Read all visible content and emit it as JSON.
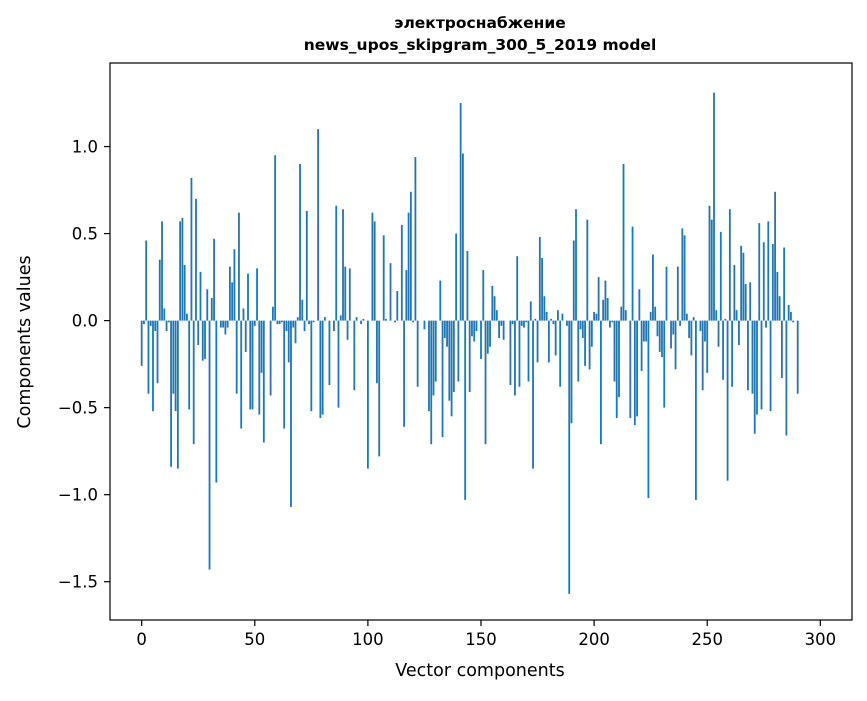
{
  "chart_data": {
    "type": "bar",
    "title": "электроснабжение",
    "subtitle": "news_upos_skipgram_300_5_2019 model",
    "xlabel": "Vector components",
    "ylabel": "Components values",
    "xlim": [
      -14,
      314
    ],
    "ylim": [
      -1.72,
      1.48
    ],
    "xticks": [
      0,
      50,
      100,
      150,
      200,
      250,
      300
    ],
    "xtick_labels": [
      "0",
      "50",
      "100",
      "150",
      "200",
      "250",
      "300"
    ],
    "yticks": [
      -1.5,
      -1.0,
      -0.5,
      0.0,
      0.5,
      1.0
    ],
    "ytick_labels": [
      "−1.5",
      "−1.0",
      "−0.5",
      "0.0",
      "0.5",
      "1.0"
    ],
    "grid": false,
    "bar_color": "#1f77b4",
    "values": [
      -0.26,
      -0.02,
      0.46,
      -0.42,
      -0.03,
      -0.52,
      -0.06,
      -0.36,
      0.35,
      0.57,
      0.07,
      -0.06,
      -0.01,
      -0.84,
      -0.42,
      -0.52,
      -0.85,
      0.57,
      0.59,
      0.32,
      0.04,
      -0.51,
      0.82,
      -0.71,
      0.7,
      -0.14,
      0.28,
      -0.23,
      -0.22,
      0.18,
      -1.43,
      0.13,
      0.47,
      -0.93,
      0.0,
      -0.04,
      -0.04,
      -0.08,
      -0.04,
      0.31,
      0.22,
      0.41,
      -0.42,
      0.62,
      -0.62,
      0.07,
      -0.18,
      0.27,
      -0.51,
      -0.51,
      -0.03,
      0.3,
      -0.54,
      -0.3,
      -0.7,
      0.0,
      0.0,
      -0.43,
      0.08,
      0.95,
      -0.02,
      -0.02,
      -0.01,
      -0.62,
      -0.06,
      -0.24,
      -1.07,
      -0.04,
      -0.13,
      0.02,
      0.9,
      0.12,
      -0.06,
      0.63,
      -0.02,
      -0.52,
      -0.01,
      0.0,
      1.1,
      -0.56,
      -0.54,
      0.02,
      0.0,
      -0.37,
      0.0,
      -0.06,
      0.66,
      -0.5,
      0.03,
      0.64,
      0.31,
      -0.11,
      0.3,
      0.0,
      -0.4,
      0.02,
      0.0,
      -0.02,
      0.01,
      0.0,
      -0.85,
      0.0,
      0.62,
      0.57,
      -0.36,
      -0.78,
      0.0,
      0.49,
      0.01,
      0.0,
      0.33,
      0.0,
      -0.01,
      0.17,
      0.0,
      0.55,
      -0.61,
      0.29,
      0.62,
      0.74,
      -0.01,
      0.94,
      -0.38,
      0.0,
      0.0,
      -0.05,
      0.0,
      -0.52,
      -0.71,
      -0.43,
      -0.35,
      0.0,
      0.23,
      -0.67,
      -0.1,
      -0.15,
      -0.46,
      -0.55,
      -0.41,
      0.5,
      -0.35,
      1.25,
      0.96,
      -1.03,
      0.4,
      -0.41,
      -0.09,
      -0.12,
      -0.06,
      0.0,
      -0.22,
      0.29,
      -0.71,
      -0.19,
      -0.15,
      0.2,
      0.14,
      0.06,
      -0.1,
      -0.03,
      -0.11,
      0.0,
      0.0,
      -0.37,
      -0.02,
      -0.43,
      0.37,
      -0.38,
      -0.03,
      -0.04,
      -0.01,
      -0.35,
      0.11,
      -0.85,
      0.01,
      -0.24,
      0.48,
      0.36,
      0.14,
      0.05,
      -0.24,
      0.01,
      -0.02,
      -0.2,
      0.06,
      -0.38,
      0.04,
      0.0,
      -0.03,
      -1.57,
      -0.59,
      0.46,
      0.64,
      -0.35,
      -0.05,
      -0.1,
      -0.26,
      0.58,
      -0.28,
      -0.15,
      0.05,
      0.04,
      0.25,
      -0.71,
      0.12,
      0.23,
      0.13,
      -0.04,
      -0.01,
      -0.35,
      -0.56,
      -0.44,
      0.08,
      0.9,
      0.06,
      0.0,
      -0.56,
      0.54,
      -0.6,
      -0.55,
      0.18,
      -0.29,
      -0.12,
      -0.12,
      -1.02,
      0.05,
      0.38,
      0.08,
      -0.09,
      -0.18,
      -0.21,
      -0.5,
      0.31,
      0.0,
      -0.16,
      -0.08,
      -0.28,
      0.31,
      -0.03,
      0.53,
      0.49,
      0.04,
      -0.1,
      -0.2,
      0.02,
      -1.03,
      0.0,
      -0.06,
      -0.4,
      -0.12,
      -0.3,
      0.66,
      0.58,
      1.31,
      0.06,
      -0.15,
      0.51,
      -0.34,
      0.01,
      -0.92,
      0.64,
      -0.38,
      0.32,
      0.06,
      -0.14,
      0.43,
      0.39,
      0.21,
      -0.4,
      0.22,
      -0.42,
      -0.65,
      -0.54,
      0.56,
      -0.51,
      0.45,
      -0.04,
      0.57,
      -0.52,
      0.44,
      0.74,
      0.28,
      0.14,
      -0.33,
      0.42,
      -0.66,
      0.09,
      0.05,
      -0.01,
      0.0,
      -0.42
    ]
  }
}
